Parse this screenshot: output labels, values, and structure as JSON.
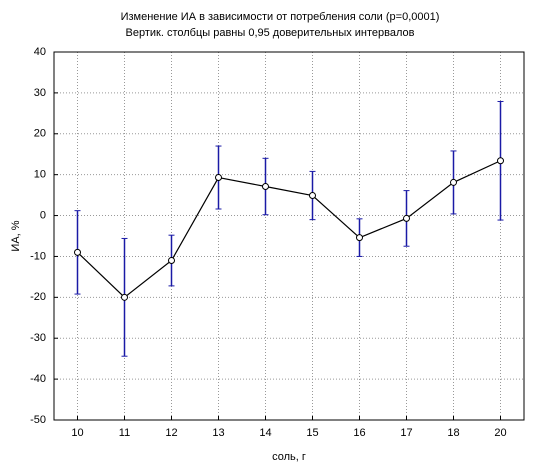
{
  "chart_data": {
    "type": "line",
    "title": "Изменение ИА  в зависимости от потребления соли (p=0,0001)",
    "subtitle": "Вертик. столбцы равны 0,95 доверительных интервалов",
    "x_label": "соль, г",
    "y_label": "ИА, %",
    "categories": [
      "10",
      "11",
      "12",
      "13",
      "14",
      "15",
      "16",
      "17",
      "18",
      "20"
    ],
    "values": [
      -9.0,
      -20.0,
      -11.0,
      9.3,
      7.1,
      4.9,
      -5.4,
      -0.7,
      8.1,
      13.4
    ],
    "errors": [
      10.2,
      14.4,
      6.2,
      7.7,
      6.9,
      5.9,
      4.6,
      6.8,
      7.7,
      14.5
    ],
    "color": "#000000",
    "error_color": "#1a1aa6",
    "ylim": [
      -50,
      40
    ],
    "yticks": [
      -50,
      -40,
      -30,
      -20,
      -10,
      0,
      10,
      20,
      30,
      40
    ],
    "grid": true
  }
}
